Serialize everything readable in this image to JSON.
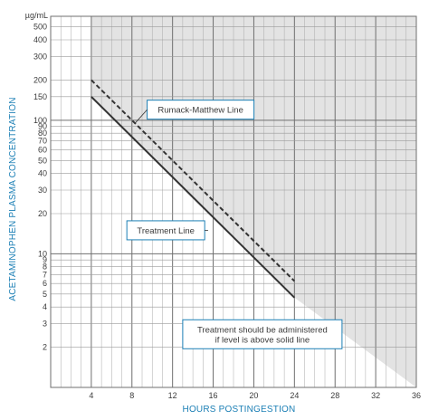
{
  "chart_data": {
    "type": "line",
    "title": "",
    "xlabel": "HOURS POSTINGESTION",
    "ylabel": "ACETAMINOPHEN PLASMA CONCENTRATION",
    "yunit": "µg/mL",
    "yscale": "log",
    "xlim": [
      0,
      36
    ],
    "ylim": [
      1,
      600
    ],
    "xticks": [
      4,
      8,
      12,
      16,
      20,
      24,
      28,
      32,
      36
    ],
    "ytick_labels": [
      {
        "v": 500,
        "t": "500"
      },
      {
        "v": 400,
        "t": "400"
      },
      {
        "v": 300,
        "t": "300"
      },
      {
        "v": 200,
        "t": "200"
      },
      {
        "v": 150,
        "t": "150"
      },
      {
        "v": 100,
        "t": "100"
      },
      {
        "v": 90,
        "t": "90"
      },
      {
        "v": 80,
        "t": "80"
      },
      {
        "v": 70,
        "t": "70"
      },
      {
        "v": 60,
        "t": "60"
      },
      {
        "v": 50,
        "t": "50"
      },
      {
        "v": 40,
        "t": "40"
      },
      {
        "v": 30,
        "t": "30"
      },
      {
        "v": 20,
        "t": "20"
      },
      {
        "v": 10,
        "t": "10"
      },
      {
        "v": 9,
        "t": "9"
      },
      {
        "v": 8,
        "t": "8"
      },
      {
        "v": 7,
        "t": "7"
      },
      {
        "v": 6,
        "t": "6"
      },
      {
        "v": 5,
        "t": "5"
      },
      {
        "v": 4,
        "t": "4"
      },
      {
        "v": 3,
        "t": "3"
      },
      {
        "v": 2,
        "t": "2"
      }
    ],
    "series": [
      {
        "name": "Rumack-Matthew Line",
        "style": "dashed",
        "x": [
          4,
          24
        ],
        "y": [
          200,
          6.25
        ]
      },
      {
        "name": "Treatment Line",
        "style": "solid",
        "x": [
          4,
          24
        ],
        "y": [
          150,
          4.7
        ]
      }
    ],
    "shaded_region": {
      "color": "#e3e3e3",
      "x": [
        4,
        36
      ],
      "y_top": 600,
      "y_bottom_at_24": 4.7,
      "y_bottom_at_36": 1
    },
    "annotations": [
      {
        "text_lines": [
          "Rumack-Matthew Line"
        ],
        "x": 9.5,
        "y": 120
      },
      {
        "text_lines": [
          "Treatment Line"
        ],
        "x": 7.5,
        "y": 15
      },
      {
        "text_lines": [
          "Treatment should be administered",
          "if level is above solid line"
        ],
        "x": 13.0,
        "y": 2.5
      }
    ],
    "grid": true,
    "colors": {
      "grid": "#9a9a9a",
      "line": "#333333",
      "accent": "#1b7fb5",
      "shade": "#e3e3e3"
    }
  }
}
